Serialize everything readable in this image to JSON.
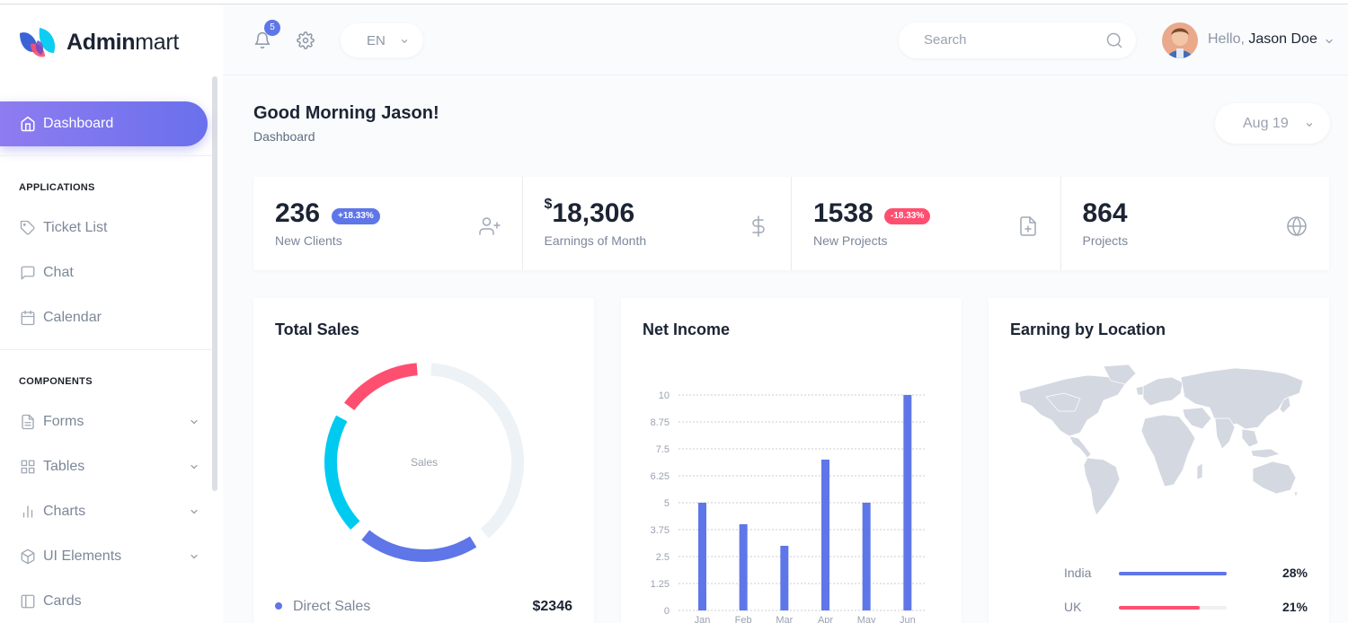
{
  "brand": {
    "name_bold": "Admin",
    "name_rest": "mart"
  },
  "sidebar": {
    "active": {
      "label": "Dashboard",
      "icon": "home-icon"
    },
    "sections": [
      {
        "heading": "APPLICATIONS",
        "items": [
          {
            "label": "Ticket List",
            "icon": "tag-icon"
          },
          {
            "label": "Chat",
            "icon": "message-square-icon"
          },
          {
            "label": "Calendar",
            "icon": "calendar-icon"
          }
        ]
      },
      {
        "heading": "COMPONENTS",
        "items": [
          {
            "label": "Forms",
            "icon": "file-text-icon",
            "expandable": true
          },
          {
            "label": "Tables",
            "icon": "grid-icon",
            "expandable": true
          },
          {
            "label": "Charts",
            "icon": "bar-chart-icon",
            "expandable": true
          },
          {
            "label": "UI Elements",
            "icon": "box-icon",
            "expandable": true
          },
          {
            "label": "Cards",
            "icon": "sidebar-icon"
          }
        ]
      }
    ]
  },
  "header": {
    "notifications_count": "5",
    "language": "EN",
    "search_placeholder": "Search",
    "greeting": "Hello,",
    "user_name": "Jason Doe"
  },
  "page": {
    "title": "Good Morning Jason!",
    "breadcrumb": "Dashboard",
    "date_filter": "Aug 19"
  },
  "stats": [
    {
      "value": "236",
      "prefix": "",
      "badge": "+18.33%",
      "badge_color": "#5f76e8",
      "label": "New Clients",
      "icon": "user-plus-icon"
    },
    {
      "value": "18,306",
      "prefix": "$",
      "badge": "",
      "badge_color": "",
      "label": "Earnings of Month",
      "icon": "dollar-sign-icon"
    },
    {
      "value": "1538",
      "prefix": "",
      "badge": "-18.33%",
      "badge_color": "#ff4f70",
      "label": "New Projects",
      "icon": "file-plus-icon"
    },
    {
      "value": "864",
      "prefix": "",
      "badge": "",
      "badge_color": "",
      "label": "Projects",
      "icon": "globe-icon"
    }
  ],
  "cards": {
    "total_sales": {
      "title": "Total Sales",
      "center_label": "Sales",
      "legend_label": "Direct Sales",
      "legend_value": "$2346"
    },
    "net_income": {
      "title": "Net Income"
    },
    "earning_by_location": {
      "title": "Earning by Location",
      "rows": [
        {
          "name": "India",
          "pct": "28%",
          "fill": 1.0,
          "color": "#5f76e8"
        },
        {
          "name": "UK",
          "pct": "21%",
          "fill": 0.75,
          "color": "#ff4f70"
        }
      ]
    }
  },
  "chart_data": [
    {
      "type": "pie",
      "title": "Total Sales",
      "center_label": "Sales",
      "slices": [
        {
          "name": "Direct Sales",
          "color": "#5f76e8",
          "fraction": 0.22
        },
        {
          "name": "",
          "color": "#01caf1",
          "fraction": 0.22
        },
        {
          "name": "",
          "color": "#ff4f70",
          "fraction": 0.16
        },
        {
          "name": "",
          "color": "#edf2f6",
          "fraction": 0.4
        }
      ]
    },
    {
      "type": "bar",
      "title": "Net Income",
      "categories": [
        "Jan",
        "Feb",
        "Mar",
        "Apr",
        "May",
        "Jun"
      ],
      "values": [
        5,
        4,
        3,
        7,
        5,
        10
      ],
      "yticks": [
        "0",
        "1.25",
        "2.5",
        "3.75",
        "5",
        "6.25",
        "7.5",
        "8.75",
        "10"
      ],
      "ylim": [
        0,
        10
      ],
      "color": "#5f76e8",
      "grid": true
    }
  ]
}
